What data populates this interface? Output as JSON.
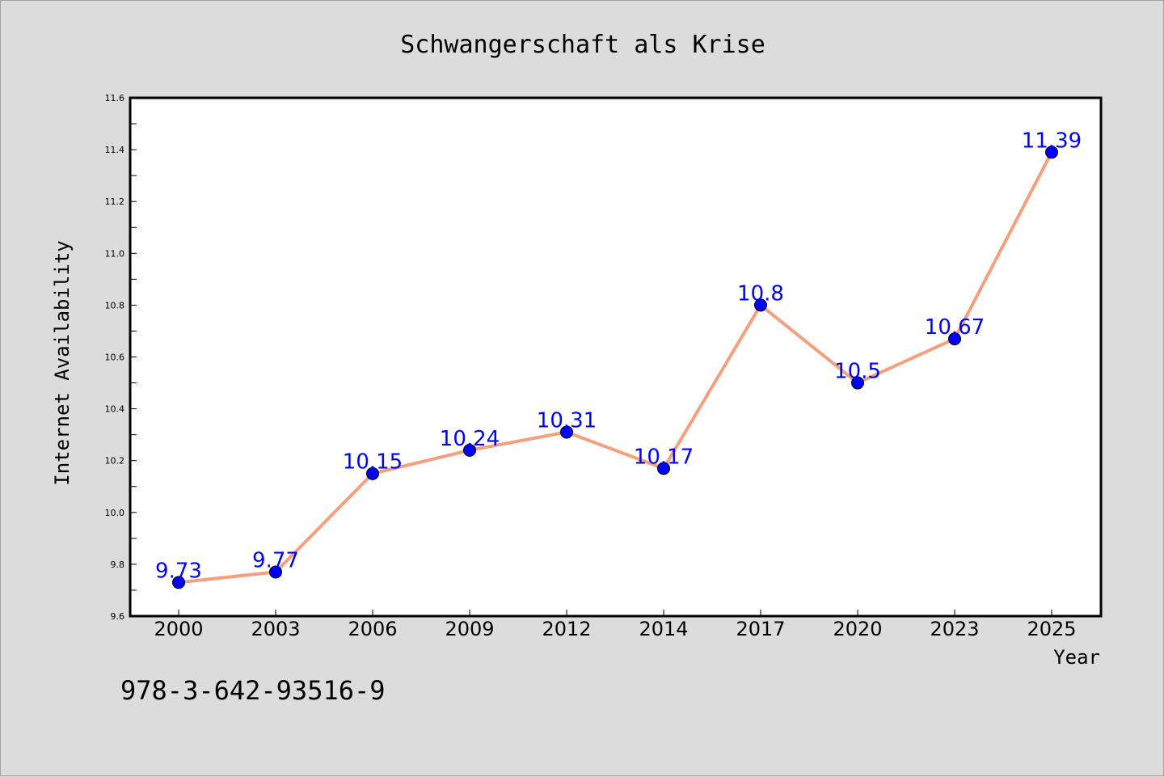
{
  "chart_data": {
    "type": "line",
    "title": "Schwangerschaft als Krise",
    "xlabel": "Year",
    "ylabel": "Internet Availability",
    "categories": [
      "2000",
      "2003",
      "2006",
      "2009",
      "2012",
      "2014",
      "2017",
      "2020",
      "2023",
      "2025"
    ],
    "series": [
      {
        "values": [
          9.73,
          9.77,
          10.15,
          10.24,
          10.31,
          10.17,
          10.8,
          10.5,
          10.67,
          11.39
        ],
        "data_labels": [
          "9.73",
          "9.77",
          "10.15",
          "10.24",
          "10.31",
          "10.17",
          "10.8",
          "10.5",
          "10.67",
          "11.39"
        ]
      }
    ],
    "ylim": [
      9.6,
      11.6
    ],
    "yticks": [
      "9.6",
      "9.8",
      "10.0",
      "10.2",
      "10.4",
      "10.6",
      "10.8",
      "11.0",
      "11.2",
      "11.4",
      "11.6"
    ],
    "grid": false,
    "legend": "none",
    "colors": {
      "line": "#f4a07f",
      "marker": "#0000ff",
      "label": "#0000ff",
      "background": "#dcdcdc",
      "plot_background": "#ffffff"
    }
  },
  "annotation": "978-3-642-93516-9"
}
